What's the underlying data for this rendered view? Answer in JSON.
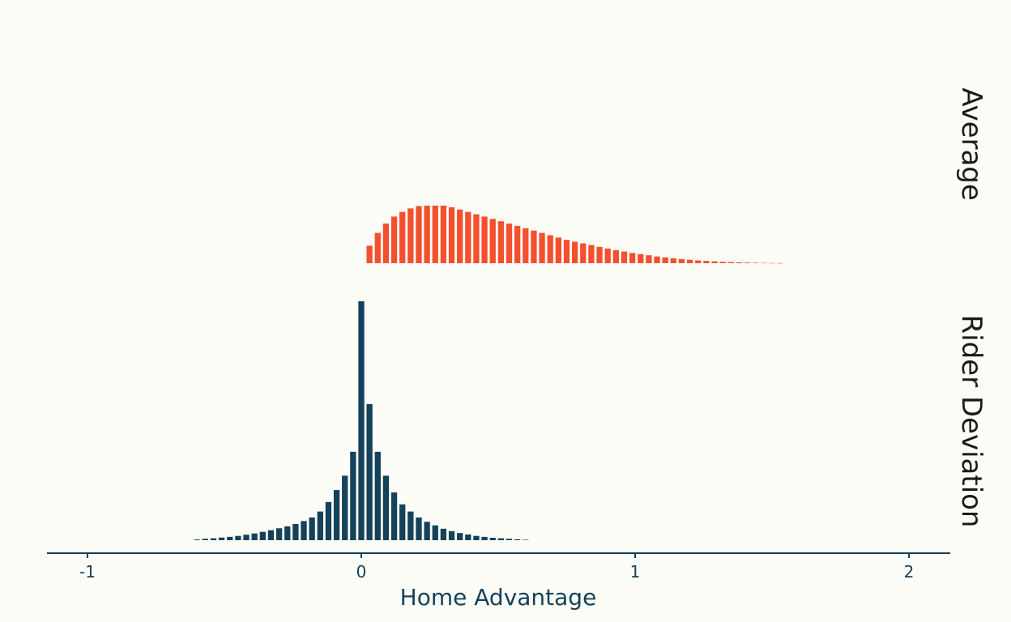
{
  "chart_data": {
    "type": "bar",
    "xlabel": "Home Advantage",
    "ylabel": "",
    "xlim": [
      -1.18,
      2.15
    ],
    "x_ticks": [
      {
        "value": -1,
        "label": "-1"
      },
      {
        "value": 0,
        "label": "0"
      },
      {
        "value": 1,
        "label": "1"
      },
      {
        "value": 2,
        "label": "2"
      }
    ],
    "grid": false,
    "legend": "none",
    "bin_width": 0.03,
    "panels": [
      {
        "facet_label": "Average",
        "color": "#f4502f",
        "x": [
          0.03,
          0.06,
          0.09,
          0.12,
          0.15,
          0.18,
          0.21,
          0.24,
          0.27,
          0.3,
          0.33,
          0.36,
          0.39,
          0.42,
          0.45,
          0.48,
          0.51,
          0.54,
          0.57,
          0.6,
          0.63,
          0.66,
          0.69,
          0.72,
          0.75,
          0.78,
          0.81,
          0.84,
          0.87,
          0.9,
          0.93,
          0.96,
          0.99,
          1.02,
          1.05,
          1.08,
          1.11,
          1.14,
          1.17,
          1.2,
          1.23,
          1.26,
          1.29,
          1.32,
          1.35,
          1.38,
          1.41,
          1.44,
          1.47,
          1.5,
          1.53
        ],
        "values": [
          0.075,
          0.13,
          0.17,
          0.2,
          0.22,
          0.235,
          0.245,
          0.247,
          0.247,
          0.247,
          0.24,
          0.23,
          0.22,
          0.21,
          0.2,
          0.19,
          0.18,
          0.17,
          0.16,
          0.15,
          0.14,
          0.13,
          0.12,
          0.11,
          0.1,
          0.092,
          0.085,
          0.078,
          0.07,
          0.063,
          0.056,
          0.05,
          0.044,
          0.039,
          0.034,
          0.029,
          0.025,
          0.021,
          0.018,
          0.015,
          0.012,
          0.01,
          0.008,
          0.006,
          0.005,
          0.004,
          0.003,
          0.002,
          0.0015,
          0.001,
          0.0006
        ]
      },
      {
        "facet_label": "Rider Deviation",
        "color": "#14425a",
        "x": [
          -0.6,
          -0.57,
          -0.54,
          -0.51,
          -0.48,
          -0.45,
          -0.42,
          -0.39,
          -0.36,
          -0.33,
          -0.3,
          -0.27,
          -0.24,
          -0.21,
          -0.18,
          -0.15,
          -0.12,
          -0.09,
          -0.06,
          -0.03,
          0,
          0.03,
          0.06,
          0.09,
          0.12,
          0.15,
          0.18,
          0.21,
          0.24,
          0.27,
          0.3,
          0.33,
          0.36,
          0.39,
          0.42,
          0.45,
          0.48,
          0.51,
          0.54,
          0.57,
          0.6
        ],
        "values": [
          0.003,
          0.006,
          0.008,
          0.011,
          0.014,
          0.018,
          0.023,
          0.028,
          0.035,
          0.042,
          0.05,
          0.058,
          0.068,
          0.08,
          0.095,
          0.12,
          0.16,
          0.21,
          0.27,
          0.37,
          1.0,
          0.57,
          0.37,
          0.27,
          0.2,
          0.15,
          0.12,
          0.095,
          0.077,
          0.062,
          0.048,
          0.038,
          0.03,
          0.024,
          0.018,
          0.014,
          0.01,
          0.008,
          0.006,
          0.004,
          0.002
        ]
      }
    ]
  }
}
